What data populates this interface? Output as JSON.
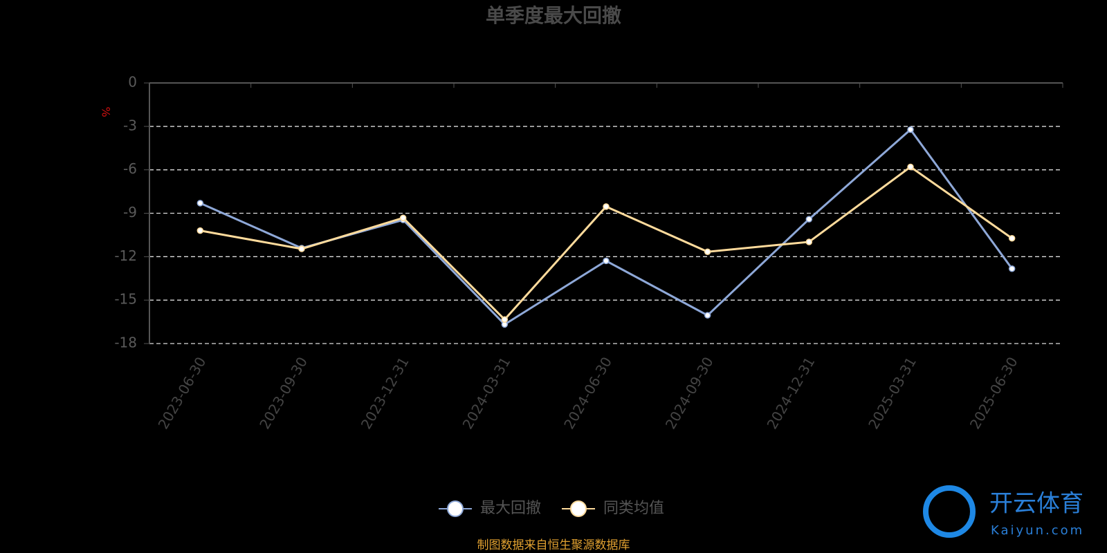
{
  "chart_data": {
    "type": "line",
    "title": "单季度最大回撤",
    "y_label": "%",
    "categories": [
      "2023-06-30",
      "2023-09-30",
      "2023-12-31",
      "2024-03-31",
      "2024-06-30",
      "2024-09-30",
      "2024-12-31",
      "2025-03-31",
      "2025-06-30"
    ],
    "series": [
      {
        "name": "最大回撤",
        "color": "#8ea8d8",
        "values": [
          -8.3,
          -11.41,
          -9.46,
          -16.68,
          -12.29,
          -16.05,
          -9.41,
          -3.22,
          -12.83
        ]
      },
      {
        "name": "同类均值",
        "color": "#ffdb9c",
        "values": [
          -10.2,
          -11.46,
          -9.32,
          -16.34,
          -8.54,
          -11.66,
          -10.98,
          -5.8,
          -10.73
        ]
      }
    ],
    "ylim": [
      -18,
      0
    ],
    "yticks": [
      0,
      -3,
      -6,
      -9,
      -12,
      -15,
      -18
    ],
    "grid": true,
    "source": "制图数据来自恒生聚源数据库",
    "watermark": {
      "brand": "开云体育",
      "site": "Kaiyun.com"
    }
  }
}
